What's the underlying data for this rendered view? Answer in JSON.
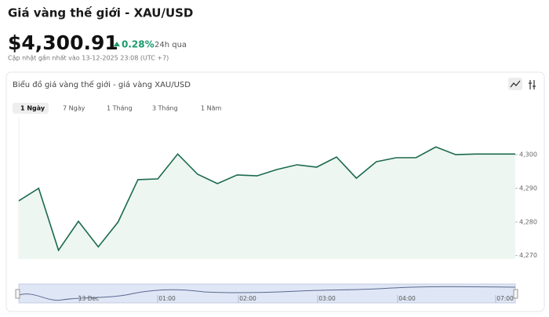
{
  "header": {
    "title": "Giá vàng thế giới - XAU/USD",
    "price": "$4,300.91",
    "change": "0.28%",
    "period": "24h qua",
    "updated": "Cập nhật gần nhất vào 13-12-2025 23:08 (UTC +7)"
  },
  "card": {
    "title": "Biểu đồ giá vàng thế giới - giá vàng XAU/USD",
    "tabs": [
      "1 Ngày",
      "7 Ngày",
      "1 Tháng",
      "3 Tháng",
      "1 Năm"
    ]
  },
  "navigator": {
    "labels": [
      "13 Dec",
      "01:00",
      "02:00",
      "03:00",
      "04:00",
      "07:00"
    ]
  },
  "chart_data": {
    "type": "line",
    "color": "#1b6a4e",
    "fill": "#eef6f1",
    "values": [
      4286.3,
      4290.0,
      4271.6,
      4280.2,
      4272.6,
      4280.0,
      4292.6,
      4292.8,
      4300.2,
      4294.2,
      4291.4,
      4294.0,
      4293.7,
      4295.6,
      4297.0,
      4296.3,
      4299.3,
      4293.0,
      4297.9,
      4299.1,
      4299.1,
      4302.3,
      4300.0,
      4300.2,
      4300.2,
      4300.2
    ],
    "ylim": [
      4269,
      4311
    ],
    "yticks": [
      {
        "value": 4270,
        "label": "4,270"
      },
      {
        "value": 4280,
        "label": "4,280"
      },
      {
        "value": 4290,
        "label": "4,290"
      },
      {
        "value": 4300,
        "label": "4,300"
      }
    ]
  }
}
